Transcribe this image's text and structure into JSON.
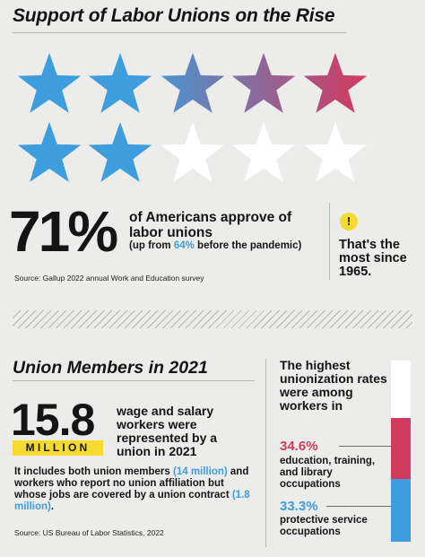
{
  "section1": {
    "title": "Support of Labor Unions on the Rise",
    "value_text": "71%",
    "description": "of Americans approve of labor unions",
    "note_prefix": "(up from ",
    "note_highlight": "64%",
    "note_suffix": " before the pandemic)",
    "source": "Source: Gallup 2022 annual Work and Education survey",
    "callout_icon": "exclamation-icon",
    "callout_symbol": "!",
    "callout_text": "That's the most since 1965."
  },
  "section2": {
    "title": "Union Members in 2021",
    "value_text": "15.8",
    "unit": "MILLION",
    "description": "wage and salary workers were represented by a union in 2021",
    "detail_part1": "It includes both union members ",
    "detail_highlight1": "(14 million)",
    "detail_part2": " and workers who report no union affiliation but whose jobs are covered by a union contract ",
    "detail_highlight2": "(1.8 million)",
    "detail_part3": ".",
    "source": "Source: US Bureau of Labor Statistics, 2022",
    "highest_text": "The highest unionization rates were among workers in"
  },
  "chart_data": [
    {
      "type": "pictograph",
      "total_icons": 10,
      "filled_icons": 7.1,
      "value": 71,
      "unit": "%",
      "previous_value": 64,
      "icon": "star-icon",
      "colors": {
        "fill_start": "#3e9ddd",
        "fill_end": "#d23a5e",
        "empty": "#ffffff"
      }
    },
    {
      "type": "bar",
      "orientation": "vertical-stacked",
      "categories": [
        "education, training, and library occupations",
        "protective service occupations"
      ],
      "values": [
        34.6,
        33.3
      ],
      "value_labels": [
        "34.6%",
        "33.3%"
      ],
      "unit": "%",
      "colors": {
        "education": "#d23a5e",
        "protective": "#3e9ddd",
        "top": "#ffffff"
      }
    }
  ],
  "colors": {
    "background": "#ececea",
    "text": "#151515",
    "blue": "#3e9ddd",
    "red": "#d23a5e",
    "yellow": "#f5db2f"
  }
}
